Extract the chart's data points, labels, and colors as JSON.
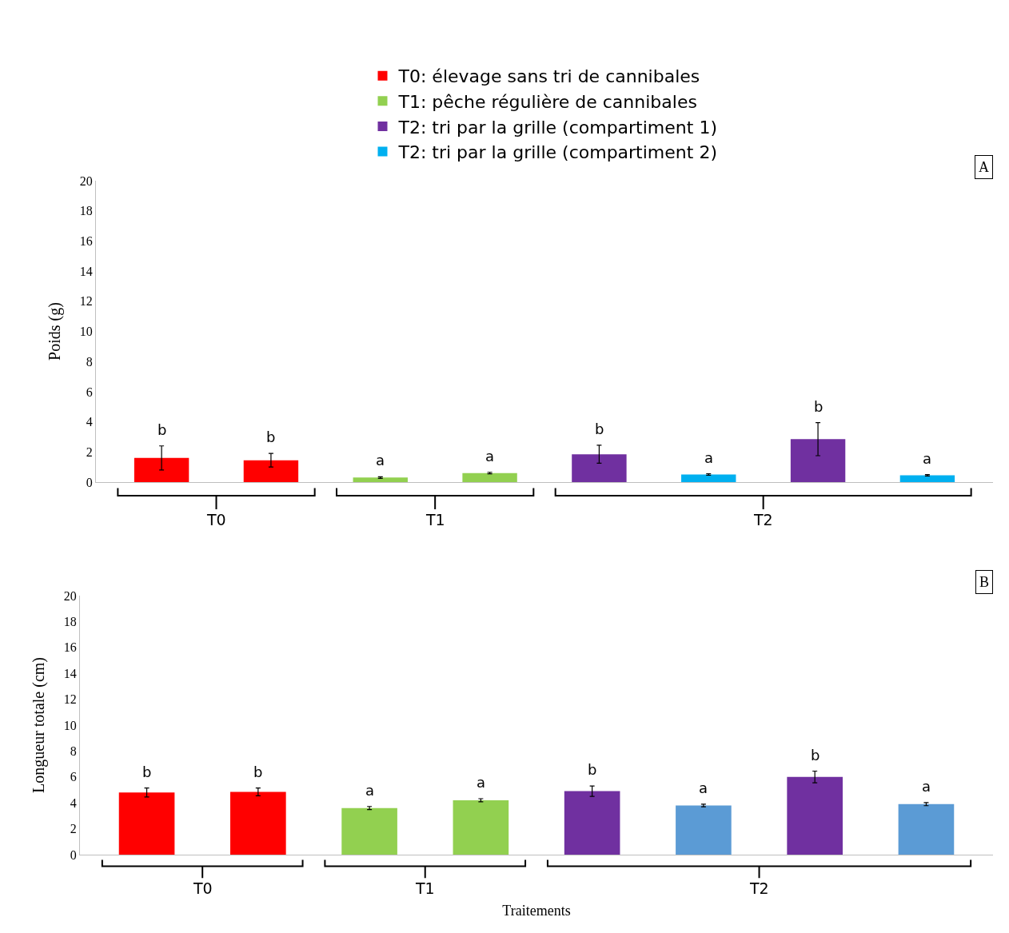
{
  "chart_data": [
    {
      "type": "bar",
      "ylabel": "Poids (g)",
      "annotations": [
        "A",
        "T0",
        "T1",
        "T2"
      ],
      "categories": [
        null,
        null,
        null,
        null,
        null,
        null,
        null,
        null
      ],
      "ylim": [
        0,
        20
      ],
      "yticks": [
        0,
        2,
        4,
        6,
        8,
        10,
        12,
        14,
        16,
        18,
        20
      ],
      "grid": false,
      "legend": "top",
      "series": [
        {
          "name": "T0: élevage sans tri de cannibales",
          "color": "#ff0000",
          "values": [
            1.6,
            1.45,
            null,
            null,
            null,
            null,
            null,
            null
          ],
          "errors": [
            0.8,
            0.45,
            null,
            null,
            null,
            null,
            null,
            null
          ],
          "value_labels": [
            "b",
            "b",
            null,
            null,
            null,
            null,
            null,
            null
          ]
        },
        {
          "name": "T1: pêche régulière de cannibales",
          "color": "#92d050",
          "values": [
            null,
            null,
            0.3,
            0.6,
            null,
            null,
            null,
            null
          ],
          "errors": [
            null,
            null,
            0.05,
            0.05,
            null,
            null,
            null,
            null
          ],
          "value_labels": [
            null,
            null,
            "a",
            "a",
            null,
            null,
            null,
            null
          ]
        },
        {
          "name": "T2: tri par la grille (compartiment 1)",
          "color": "#7030a0",
          "values": [
            null,
            null,
            null,
            null,
            1.85,
            null,
            2.85,
            null
          ],
          "errors": [
            null,
            null,
            null,
            null,
            0.6,
            null,
            1.1,
            null
          ],
          "value_labels": [
            null,
            null,
            null,
            null,
            "b",
            null,
            "b",
            null
          ]
        },
        {
          "name": "T2: tri par la grille (compartiment 2)",
          "color": "#00b0f0",
          "values": [
            null,
            null,
            null,
            null,
            null,
            0.5,
            null,
            0.45
          ],
          "errors": [
            null,
            null,
            null,
            null,
            null,
            0.05,
            null,
            0.05
          ],
          "value_labels": [
            null,
            null,
            null,
            null,
            null,
            "a",
            null,
            "a"
          ]
        }
      ]
    },
    {
      "type": "bar",
      "ylabel": "Longueur totale (cm)",
      "xlabel": "Traitements",
      "annotations": [
        "B",
        "T0",
        "T1",
        "T2"
      ],
      "categories": [
        null,
        null,
        null,
        null,
        null,
        null,
        null,
        null
      ],
      "ylim": [
        0,
        20
      ],
      "yticks": [
        0,
        2,
        4,
        6,
        8,
        10,
        12,
        14,
        16,
        18,
        20
      ],
      "grid": false,
      "series": [
        {
          "color": "#ff0000",
          "values": [
            4.8,
            4.85,
            null,
            null,
            null,
            null,
            null,
            null
          ],
          "errors": [
            0.35,
            0.3,
            null,
            null,
            null,
            null,
            null,
            null
          ],
          "value_labels": [
            "b",
            "b",
            null,
            null,
            null,
            null,
            null,
            null
          ]
        },
        {
          "color": "#92d050",
          "values": [
            null,
            null,
            3.6,
            4.2,
            null,
            null,
            null,
            null
          ],
          "errors": [
            null,
            null,
            0.12,
            0.12,
            null,
            null,
            null,
            null
          ],
          "value_labels": [
            null,
            null,
            "a",
            "a",
            null,
            null,
            null,
            null
          ]
        },
        {
          "color": "#7030a0",
          "values": [
            null,
            null,
            null,
            null,
            4.9,
            null,
            6.0,
            null
          ],
          "errors": [
            null,
            null,
            null,
            null,
            0.4,
            null,
            0.45,
            null
          ],
          "value_labels": [
            null,
            null,
            null,
            null,
            "b",
            null,
            "b",
            null
          ]
        },
        {
          "color": "#5b9bd5",
          "values": [
            null,
            null,
            null,
            null,
            null,
            3.8,
            null,
            3.9
          ],
          "errors": [
            null,
            null,
            null,
            null,
            null,
            0.1,
            null,
            0.12
          ],
          "value_labels": [
            null,
            null,
            null,
            null,
            null,
            "a",
            null,
            "a"
          ]
        }
      ]
    }
  ]
}
